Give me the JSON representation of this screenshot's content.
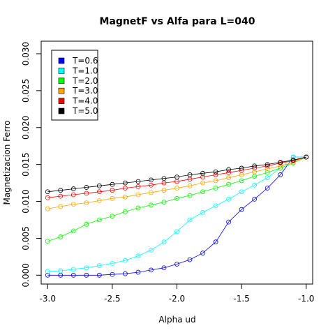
{
  "chart_data": {
    "type": "line",
    "title": "MagnetF vs Alfa para L=040",
    "xlabel": "Alpha ud",
    "ylabel": "Magnetizacion Ferro",
    "xlim": [
      -3.05,
      -0.95
    ],
    "ylim": [
      -0.0012,
      0.0317
    ],
    "x_ticks": [
      -3.0,
      -2.5,
      -2.0,
      -1.5,
      -1.0
    ],
    "x_tick_labels": [
      "-3.0",
      "-2.5",
      "-2.0",
      "-1.5",
      "-1.0"
    ],
    "y_ticks": [
      0.0,
      0.005,
      0.01,
      0.015,
      0.02,
      0.025,
      0.03
    ],
    "y_tick_labels": [
      "0.000",
      "0.005",
      "0.010",
      "0.015",
      "0.020",
      "0.025",
      "0.030"
    ],
    "grid": false,
    "legend_position": "top-left",
    "x": [
      -3.0,
      -2.9,
      -2.8,
      -2.7,
      -2.6,
      -2.5,
      -2.4,
      -2.3,
      -2.2,
      -2.1,
      -2.0,
      -1.9,
      -1.8,
      -1.7,
      -1.6,
      -1.5,
      -1.4,
      -1.3,
      -1.2,
      -1.1,
      -1.0
    ],
    "series": [
      {
        "name": "T=0.6",
        "color": "#0000ff",
        "values": [
          0.0,
          0.0,
          0.0,
          0.0,
          0.0,
          0.0001,
          0.0002,
          0.0004,
          0.0007,
          0.001,
          0.0015,
          0.0021,
          0.003,
          0.0045,
          0.0072,
          0.0089,
          0.0103,
          0.0118,
          0.0136,
          0.016,
          0.016
        ]
      },
      {
        "name": "T=1.0",
        "color": "#00ffff",
        "values": [
          0.0005,
          0.0006,
          0.0008,
          0.001,
          0.0013,
          0.0016,
          0.002,
          0.0026,
          0.0034,
          0.0045,
          0.0059,
          0.0075,
          0.0085,
          0.0094,
          0.0103,
          0.0113,
          0.0122,
          0.0132,
          0.0145,
          0.016,
          0.016
        ]
      },
      {
        "name": "T=2.0",
        "color": "#00ff00",
        "values": [
          0.0046,
          0.0052,
          0.006,
          0.0069,
          0.0075,
          0.008,
          0.0086,
          0.0091,
          0.0095,
          0.0099,
          0.0104,
          0.0108,
          0.0113,
          0.0118,
          0.0123,
          0.0128,
          0.0134,
          0.0139,
          0.0145,
          0.0152,
          0.016
        ]
      },
      {
        "name": "T=3.0",
        "color": "#ffa500",
        "values": [
          0.009,
          0.0093,
          0.0096,
          0.0098,
          0.0101,
          0.0104,
          0.0106,
          0.0109,
          0.0112,
          0.0115,
          0.0118,
          0.0121,
          0.0125,
          0.0128,
          0.0132,
          0.0136,
          0.014,
          0.0144,
          0.0148,
          0.0153,
          0.016
        ]
      },
      {
        "name": "T=4.0",
        "color": "#ff0000",
        "values": [
          0.0105,
          0.0107,
          0.0109,
          0.0111,
          0.0113,
          0.0115,
          0.0118,
          0.012,
          0.0122,
          0.0125,
          0.0127,
          0.013,
          0.0133,
          0.0136,
          0.0139,
          0.0142,
          0.0145,
          0.0148,
          0.0152,
          0.0155,
          0.016
        ]
      },
      {
        "name": "T=5.0",
        "color": "#000000",
        "values": [
          0.0113,
          0.0115,
          0.0117,
          0.0119,
          0.0121,
          0.0123,
          0.0125,
          0.0127,
          0.0129,
          0.0131,
          0.0133,
          0.0136,
          0.0138,
          0.014,
          0.0143,
          0.0145,
          0.0148,
          0.015,
          0.0153,
          0.0156,
          0.016
        ]
      }
    ]
  }
}
